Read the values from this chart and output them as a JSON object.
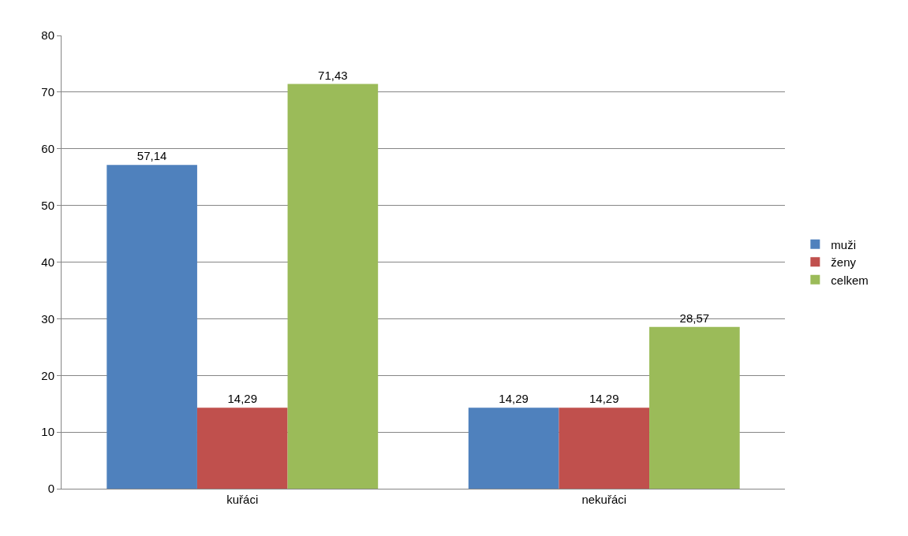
{
  "chart_data": {
    "type": "bar",
    "categories": [
      "kuřáci",
      "nekuřáci"
    ],
    "series": [
      {
        "name": "muži",
        "color": "#4f81bd",
        "values": [
          57.14,
          14.29
        ],
        "value_labels": [
          "57,14",
          "14,29"
        ]
      },
      {
        "name": "ženy",
        "color": "#c0504d",
        "values": [
          14.29,
          14.29
        ],
        "value_labels": [
          "14,29",
          "14,29"
        ]
      },
      {
        "name": "celkem",
        "color": "#9bbb59",
        "values": [
          71.43,
          28.57
        ],
        "value_labels": [
          "71,43",
          "28,57"
        ]
      }
    ],
    "ylim": [
      0,
      80
    ],
    "yticks": [
      0,
      10,
      20,
      30,
      40,
      50,
      60,
      70,
      80
    ],
    "grid": "y",
    "legend": "right"
  }
}
